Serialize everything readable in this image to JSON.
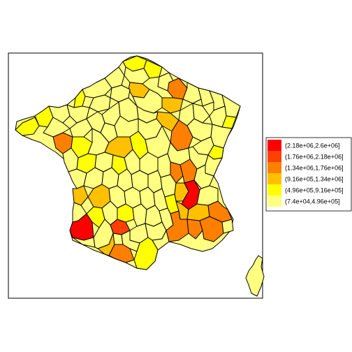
{
  "map": {
    "region": "France",
    "palette": [
      "#FFFF80",
      "#FFFF00",
      "#FFC000",
      "#FF8000",
      "#FF4000",
      "#FF0000"
    ]
  },
  "legend": {
    "placement": "right",
    "entries": [
      {
        "label": "(2.18e+06,2.6e+06]",
        "color": "#FF0000"
      },
      {
        "label": "(1.76e+06,2.18e+06]",
        "color": "#FF4000"
      },
      {
        "label": "(1.34e+06,1.76e+06]",
        "color": "#FF8000"
      },
      {
        "label": "(9.16e+05,1.34e+06]",
        "color": "#FFC000"
      },
      {
        "label": "(4.96e+05,9.16e+05]",
        "color": "#FFFF00"
      },
      {
        "label": "(7.4e+04,4.96e+05]",
        "color": "#FFFF80"
      }
    ]
  }
}
